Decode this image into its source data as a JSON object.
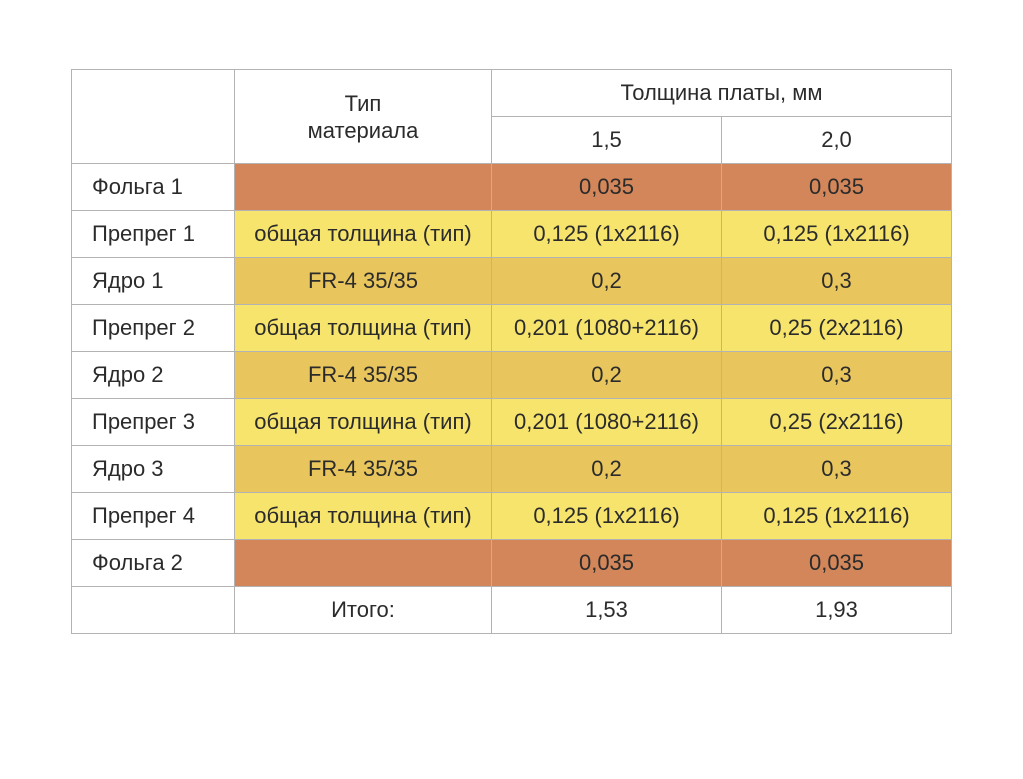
{
  "header": {
    "type_label": "Тип\nматериала",
    "thickness_label": "Толщина платы, мм",
    "variants": [
      "1,5",
      "2,0"
    ]
  },
  "colors": {
    "foil": "#d2865a",
    "prepreg": "#f6e46c",
    "core": "#e9c65d",
    "border": "#b3b3b3"
  },
  "rows": [
    {
      "name": "Фольга 1",
      "kind": "foil",
      "material": "",
      "v15": "0,035",
      "v20": "0,035"
    },
    {
      "name": "Препрег 1",
      "kind": "prepreg",
      "material": "общая толщина (тип)",
      "v15": "0,125 (1x2116)",
      "v20": "0,125 (1x2116)"
    },
    {
      "name": "Ядро 1",
      "kind": "core",
      "material": "FR-4 35/35",
      "v15": "0,2",
      "v20": "0,3"
    },
    {
      "name": "Препрег 2",
      "kind": "prepreg",
      "material": "общая толщина (тип)",
      "v15": "0,201 (1080+2116)",
      "v20": "0,25 (2x2116)"
    },
    {
      "name": "Ядро 2",
      "kind": "core",
      "material": "FR-4 35/35",
      "v15": "0,2",
      "v20": "0,3"
    },
    {
      "name": "Препрег 3",
      "kind": "prepreg",
      "material": "общая толщина (тип)",
      "v15": "0,201 (1080+2116)",
      "v20": "0,25 (2x2116)"
    },
    {
      "name": "Ядро 3",
      "kind": "core",
      "material": "FR-4 35/35",
      "v15": "0,2",
      "v20": "0,3"
    },
    {
      "name": "Препрег 4",
      "kind": "prepreg",
      "material": "общая толщина (тип)",
      "v15": "0,125 (1x2116)",
      "v20": "0,125 (1x2116)"
    },
    {
      "name": "Фольга 2",
      "kind": "foil",
      "material": "",
      "v15": "0,035",
      "v20": "0,035"
    }
  ],
  "total": {
    "label": "Итого:",
    "v15": "1,53",
    "v20": "1,93"
  }
}
